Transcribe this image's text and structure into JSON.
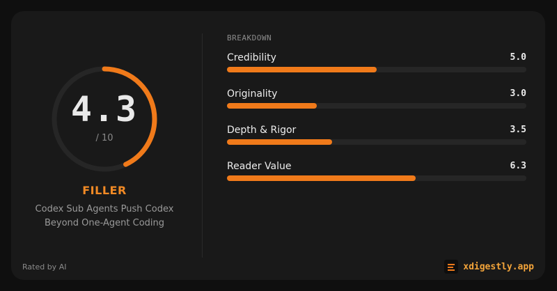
{
  "score": {
    "value": "4.3",
    "max_label": "/ 10",
    "fraction": 0.43
  },
  "verdict": "FILLER",
  "article_title": "Codex Sub Agents Push Codex Beyond One-Agent Coding",
  "rated_by": "Rated by AI",
  "breakdown": {
    "label": "BREAKDOWN",
    "metrics": [
      {
        "name": "Credibility",
        "value": "5.0",
        "fraction": 0.5
      },
      {
        "name": "Originality",
        "value": "3.0",
        "fraction": 0.3
      },
      {
        "name": "Depth & Rigor",
        "value": "3.5",
        "fraction": 0.35
      },
      {
        "name": "Reader Value",
        "value": "6.3",
        "fraction": 0.63
      }
    ]
  },
  "brand": {
    "name": "xdigestly.app",
    "icon": "document-lines-icon"
  },
  "colors": {
    "accent": "#f07a1a",
    "card_bg": "#191919",
    "page_bg": "#0f0f0f",
    "track": "#262626"
  }
}
